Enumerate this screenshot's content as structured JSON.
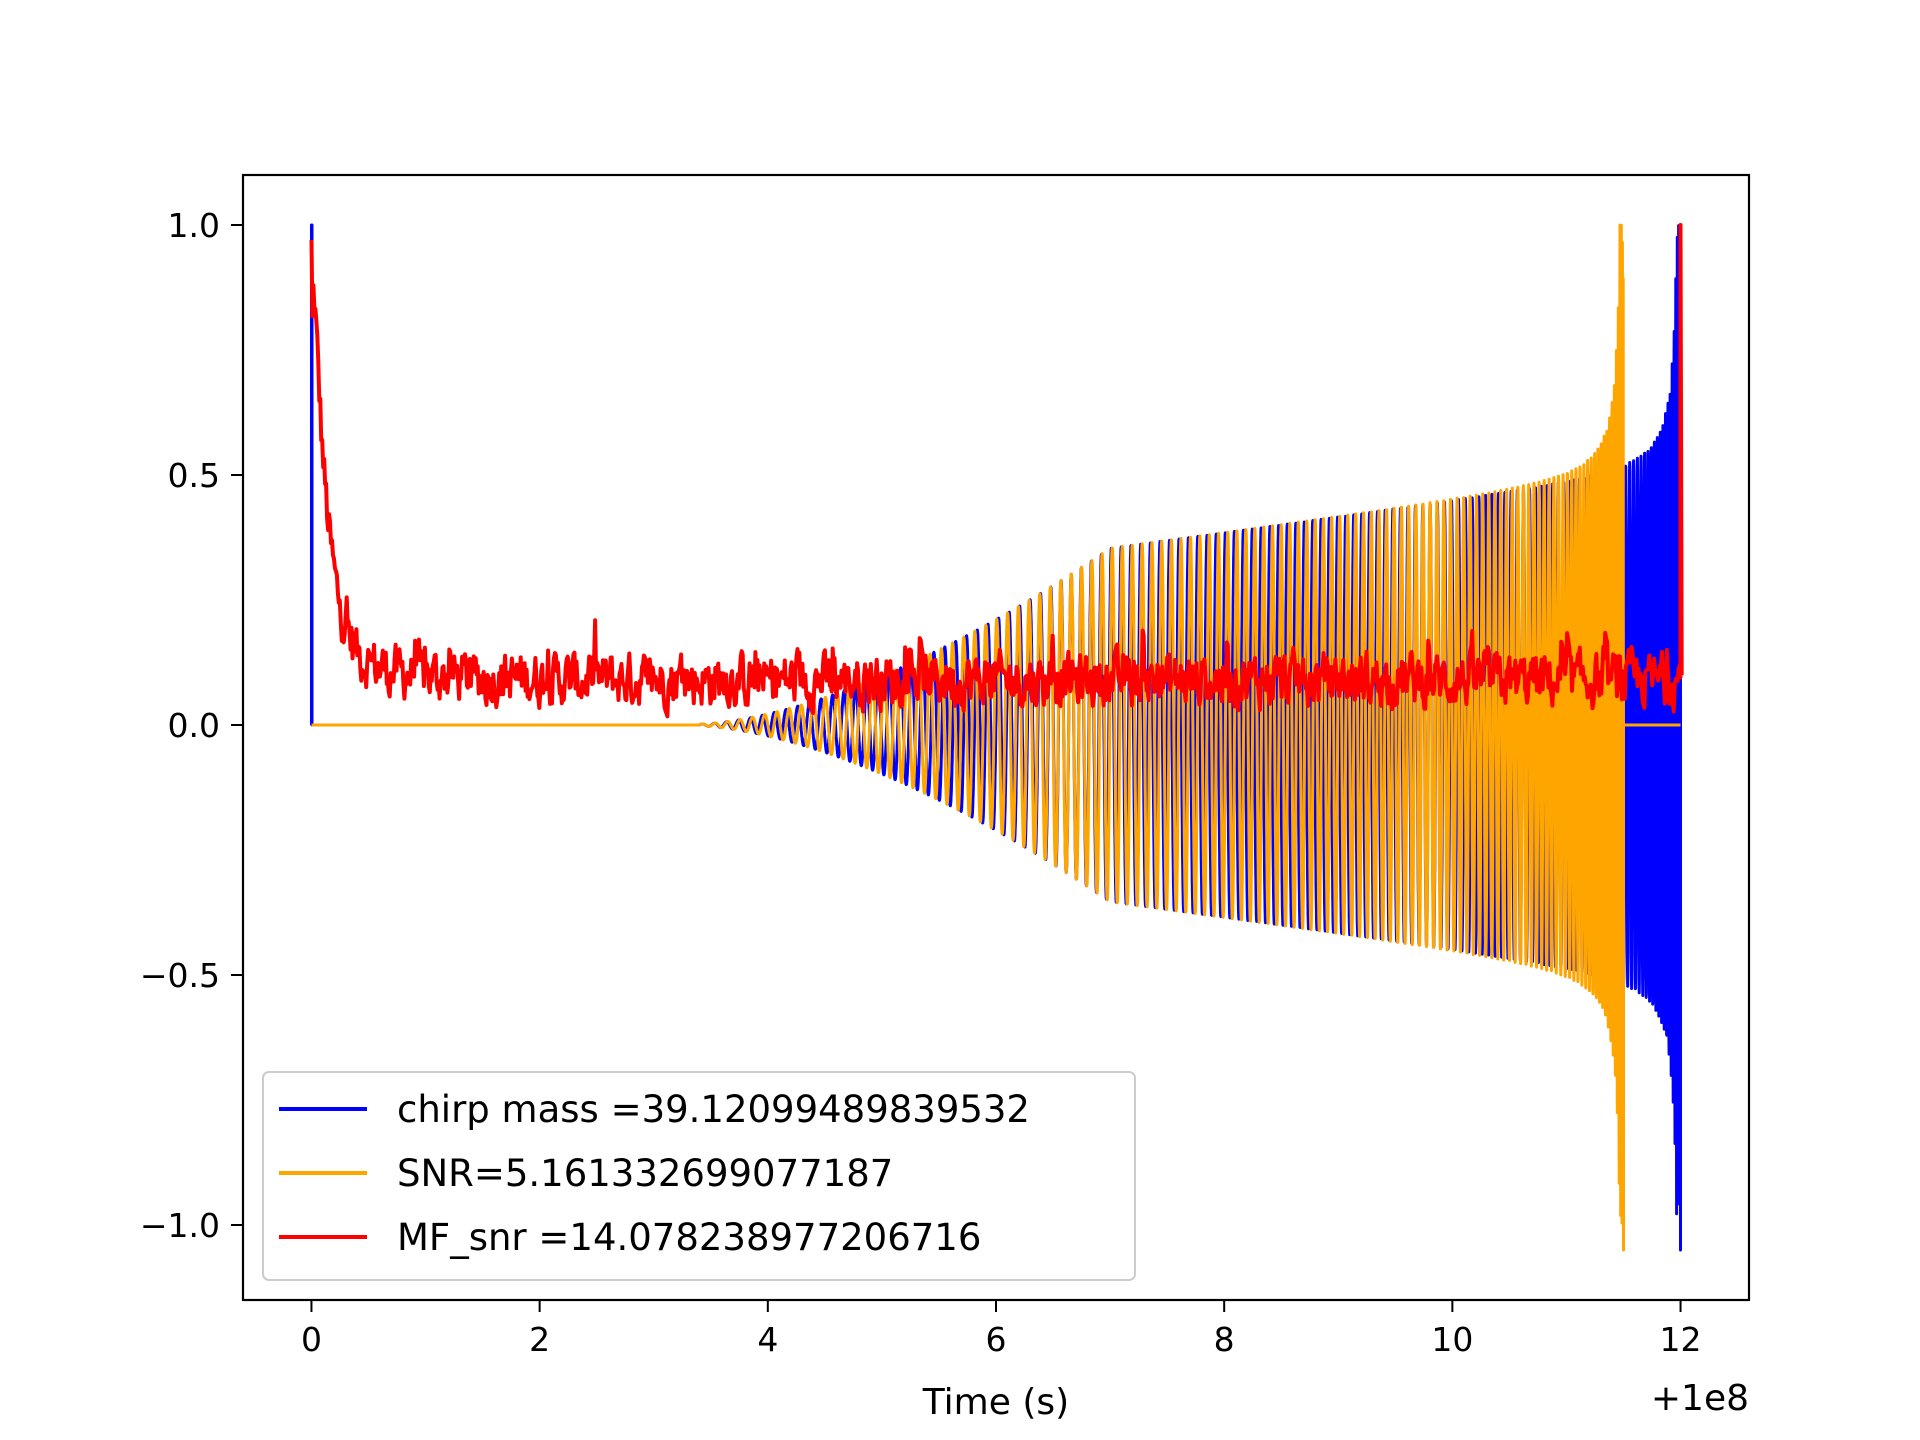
{
  "chart_data": {
    "type": "line",
    "title": "",
    "xlabel": "Time (s)",
    "ylabel": "",
    "x_offset_label": "+1e8",
    "xlim": [
      -0.6,
      12.6
    ],
    "ylim": [
      -1.15,
      1.1
    ],
    "x_ticks": [
      0,
      2,
      4,
      6,
      8,
      10,
      12
    ],
    "x_tick_labels": [
      "0",
      "2",
      "4",
      "6",
      "8",
      "10",
      "12"
    ],
    "y_ticks": [
      1.0,
      0.5,
      0.0,
      -0.5,
      -1.0
    ],
    "y_tick_labels": [
      "1.0",
      "0.5",
      "0.0",
      "−0.5",
      "−1.0"
    ],
    "grid": false,
    "legend_position": "lower-left",
    "series": [
      {
        "name": "chirp mass =39.12099489839532",
        "color": "#0000ff",
        "description_of_shape": "spike to 1.0 at t=0, zero until ~3.5, growing chirp oscillation up to +/-1.0 ending at t=12"
      },
      {
        "name": "SNR=5.161332699077187",
        "color": "#ffa500",
        "description_of_shape": "chirp oscillation starting ~3.5, growing to +/-1.0 ending at t=11.5"
      },
      {
        "name": "MF_snr =14.078238977206716",
        "color": "#ff0000",
        "description_of_shape": "starts at ~0.97 at t=0, decays quickly, noisy around 0.0-0.25 until t=12, spike to 1.0 at t=12"
      }
    ]
  }
}
